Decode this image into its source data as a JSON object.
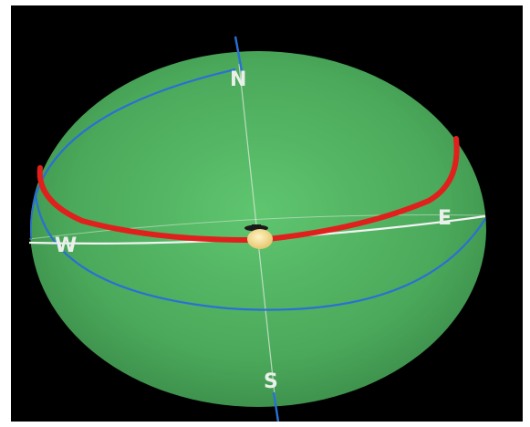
{
  "scene": {
    "background_color": "#000000",
    "frame_color": "#ffffff",
    "dome_color": "#4fb060",
    "horizon_color": "#f4f4f4",
    "meridian_color": "#e8efe8",
    "celestial_circle_color": "#2a6fd6",
    "sun_path_color": "#e0201c",
    "sun_color": "#f3dc8e",
    "observer_color": "#1a1a1a"
  },
  "labels": {
    "north": "N",
    "south": "S",
    "east": "E",
    "west": "W"
  }
}
